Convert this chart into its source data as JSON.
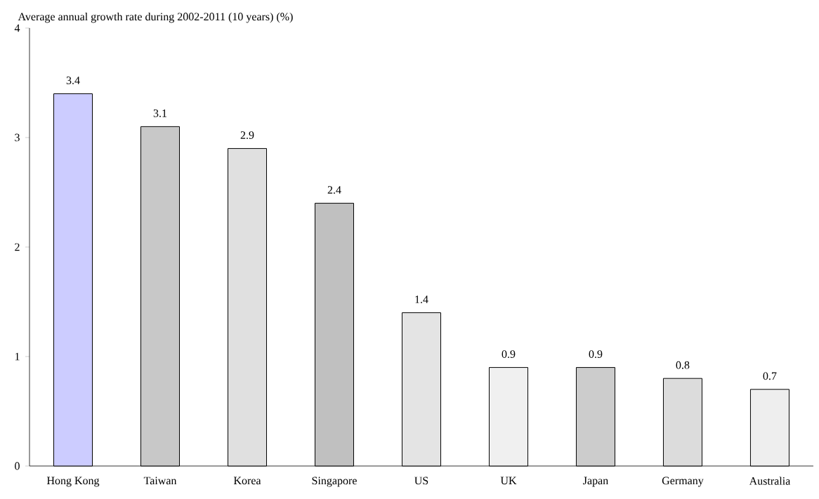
{
  "chart_data": {
    "type": "bar",
    "ylabel": "Average annual growth rate during 2002-2011 (10 years) (%)",
    "categories": [
      "Hong Kong",
      "Taiwan",
      "Korea",
      "Singapore",
      "US",
      "UK",
      "Japan",
      "Germany",
      "Australia"
    ],
    "values": [
      3.4,
      3.1,
      2.9,
      2.4,
      1.4,
      0.9,
      0.9,
      0.8,
      0.7
    ],
    "colors": [
      "#ccccff",
      "#c8c8c8",
      "#e0e0e0",
      "#c0c0c0",
      "#e4e4e4",
      "#f0f0f0",
      "#cccccc",
      "#dcdcdc",
      "#eeeeee"
    ],
    "data_labels": true,
    "ylim": [
      0,
      4
    ],
    "yticks": [
      0,
      1,
      2,
      3,
      4
    ],
    "grid": false
  }
}
